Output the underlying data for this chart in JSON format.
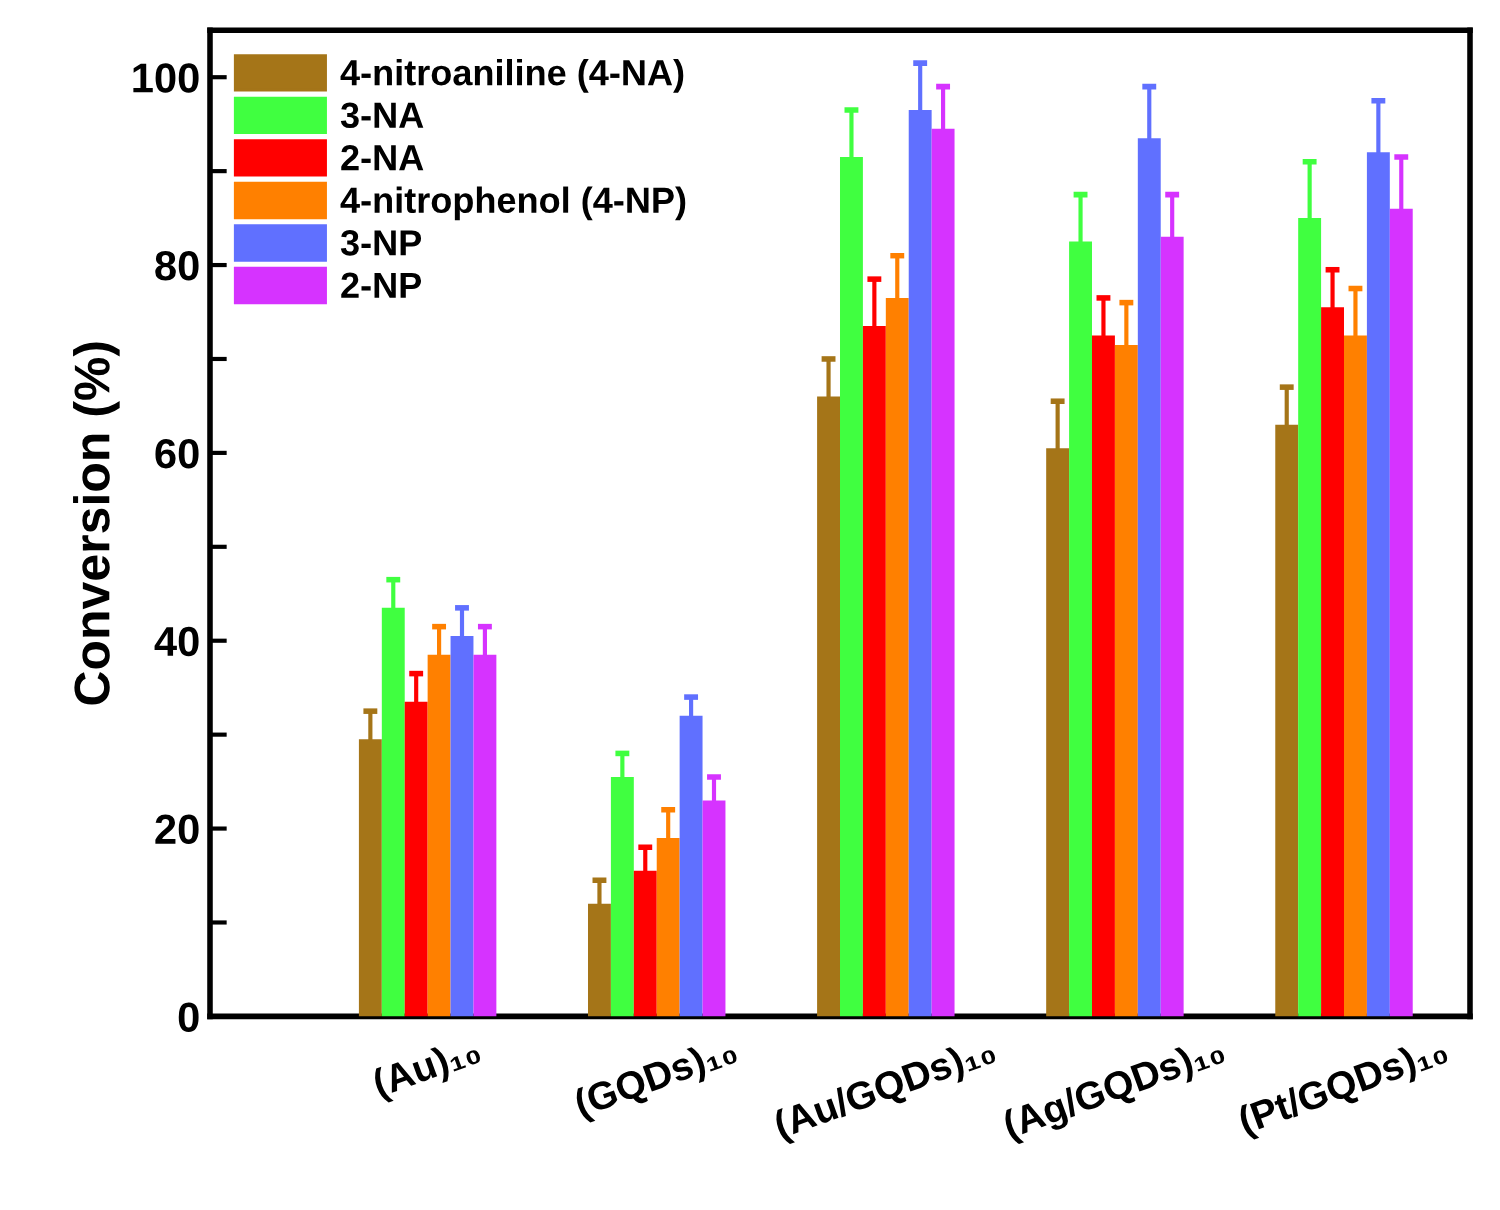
{
  "chart_data": {
    "type": "bar",
    "ylabel": "Conversion (%)",
    "categories": [
      "(Au)₁₀",
      "(GQDs)₁₀",
      "(Au/GQDs)₁₀",
      "(Ag/GQDs)₁₀",
      "(Pt/GQDs)₁₀"
    ],
    "series": [
      {
        "name": "4-nitroaniline (4-NA)",
        "color": "#a57518",
        "values": [
          29.5,
          12,
          66,
          60.5,
          63
        ],
        "errors": [
          3,
          2.5,
          4,
          5,
          4
        ]
      },
      {
        "name": "3-NA",
        "color": "#40ff40",
        "values": [
          43.5,
          25.5,
          91.5,
          82.5,
          85
        ],
        "errors": [
          3,
          2.5,
          5,
          5,
          6
        ]
      },
      {
        "name": "2-NA",
        "color": "#ff0000",
        "values": [
          33.5,
          15.5,
          73.5,
          72.5,
          75.5
        ],
        "errors": [
          3,
          2.5,
          5,
          4,
          4
        ]
      },
      {
        "name": "4-nitrophenol (4-NP)",
        "color": "#ff8000",
        "values": [
          38.5,
          19,
          76.5,
          71.5,
          72.5
        ],
        "errors": [
          3,
          3,
          4.5,
          4.5,
          5
        ]
      },
      {
        "name": "3-NP",
        "color": "#6070ff",
        "values": [
          40.5,
          32,
          96.5,
          93.5,
          92
        ],
        "errors": [
          3,
          2,
          5,
          5.5,
          5.5
        ]
      },
      {
        "name": "2-NP",
        "color": "#d633ff",
        "values": [
          38.5,
          23,
          94.5,
          83,
          86
        ],
        "errors": [
          3,
          2.5,
          4.5,
          4.5,
          5.5
        ]
      }
    ],
    "ylim": [
      0,
      105
    ],
    "yticks": [
      0,
      {
        "value": 10,
        "label": null
      },
      20,
      {
        "value": 30,
        "label": null
      },
      40,
      {
        "value": 50,
        "label": null
      },
      60,
      {
        "value": 70,
        "label": null
      },
      80,
      {
        "value": 90,
        "label": null
      },
      100
    ],
    "legend": "top left",
    "grid": false
  }
}
